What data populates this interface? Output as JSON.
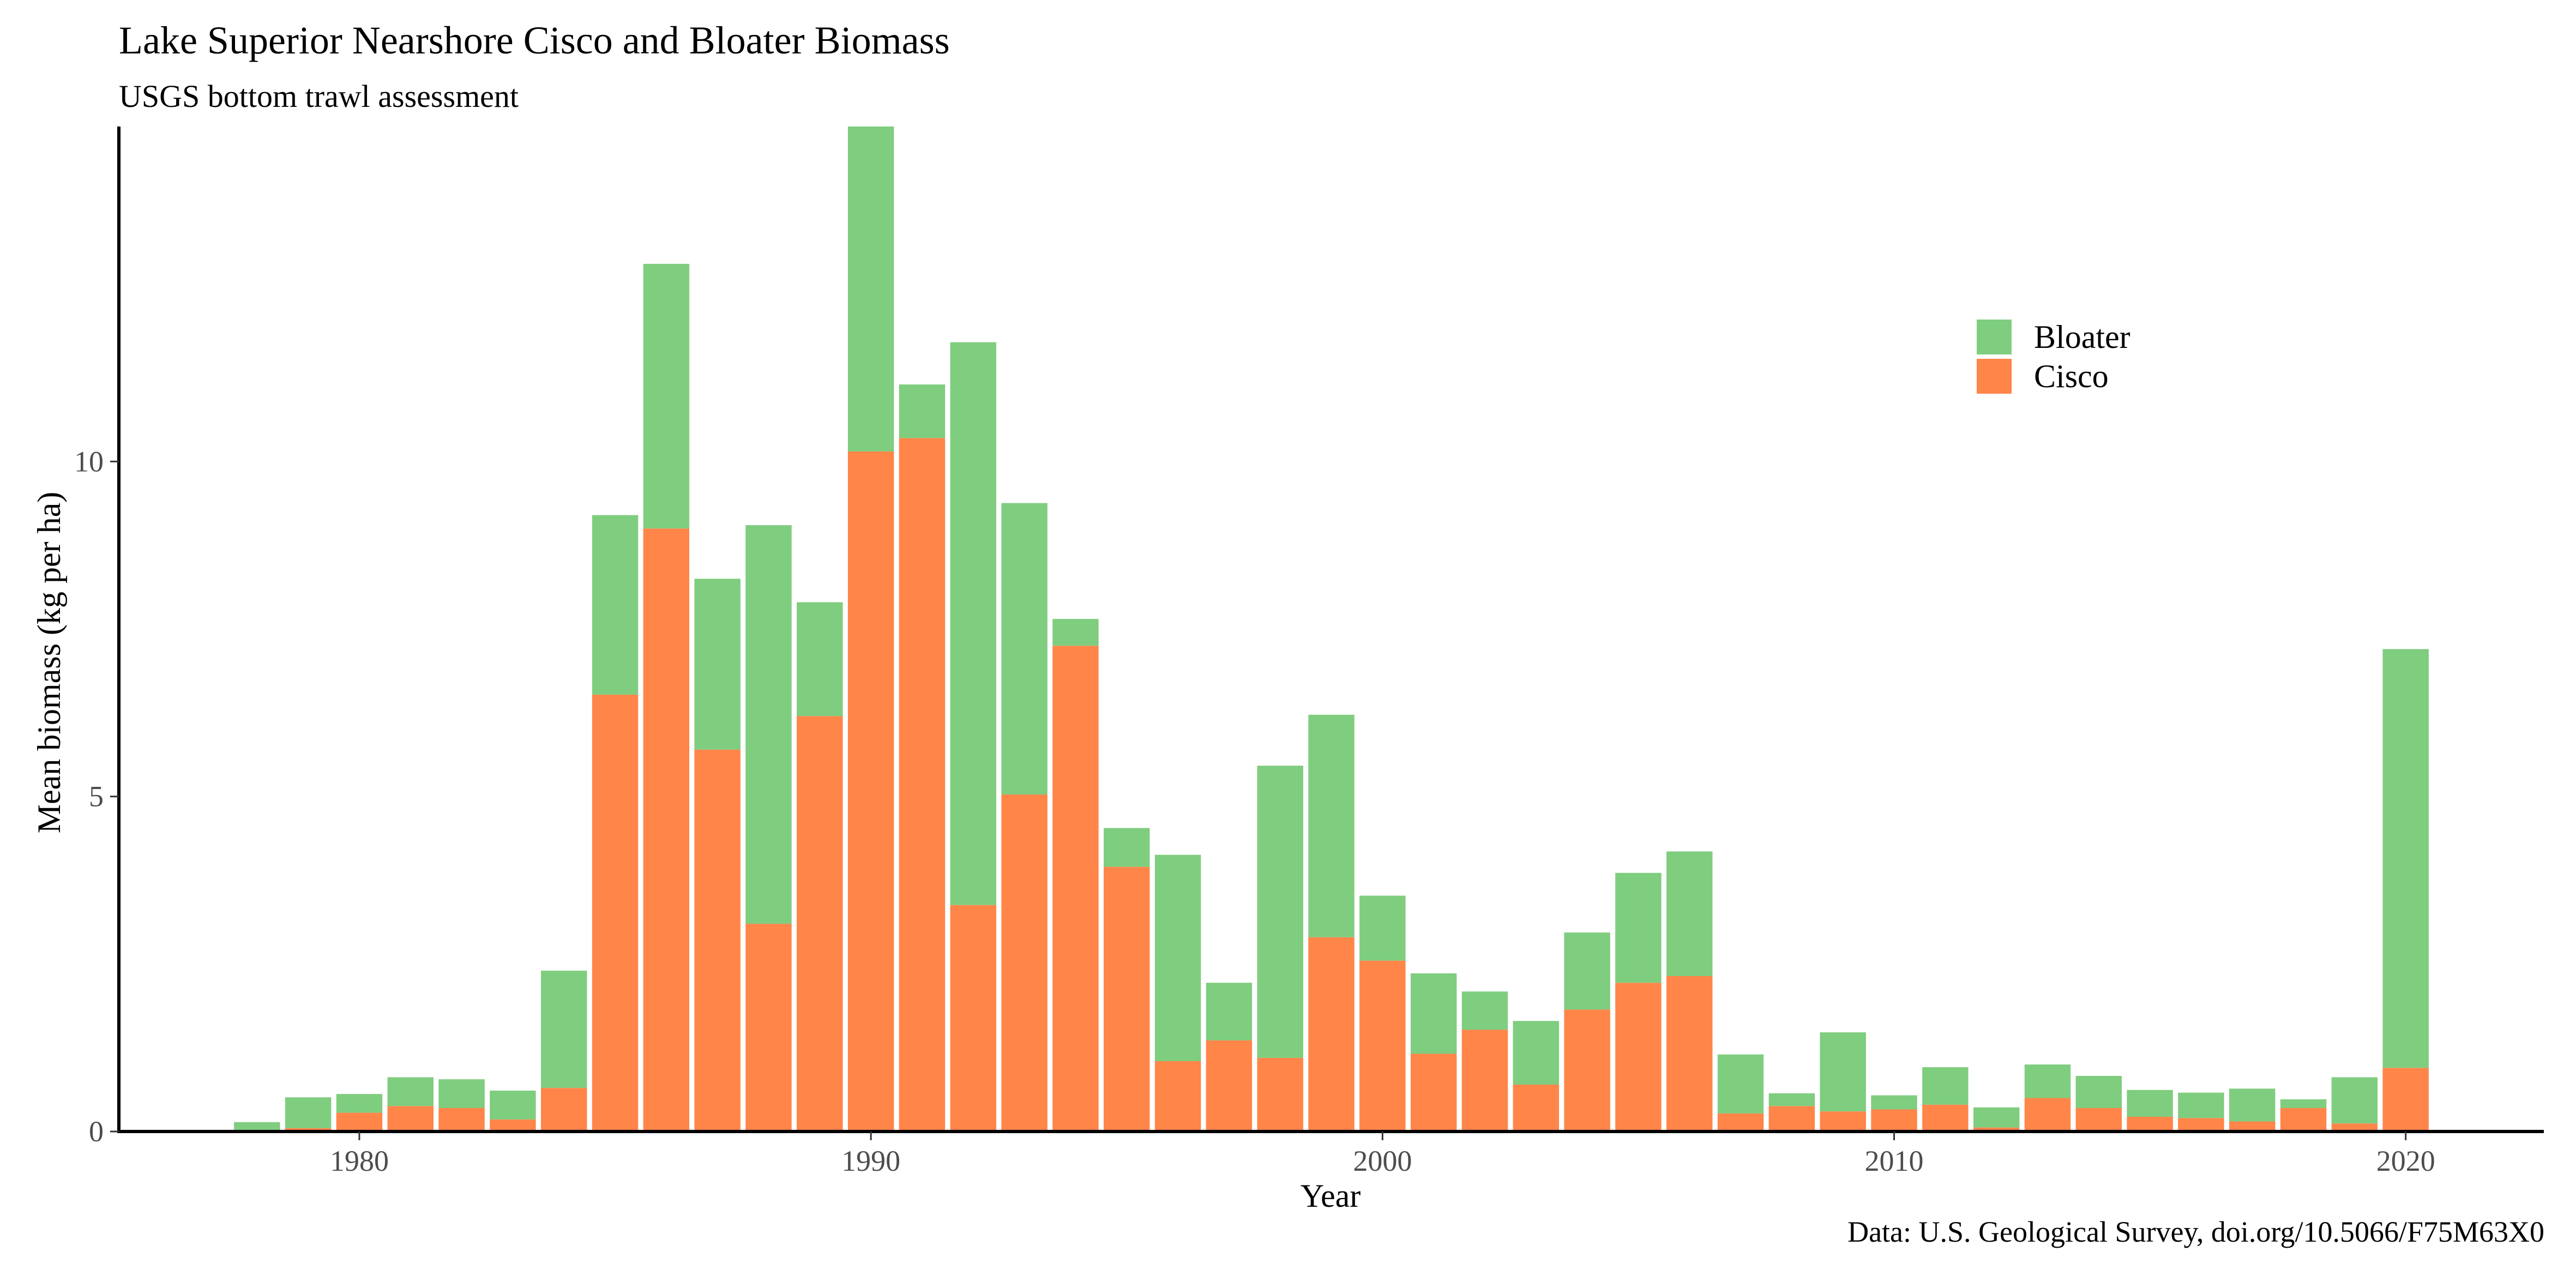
{
  "chart_data": {
    "type": "bar",
    "stacked": true,
    "title": "Lake Superior Nearshore Cisco and Bloater Biomass",
    "subtitle": "USGS bottom trawl assessment",
    "caption": "Data: U.S. Geological Survey, doi.org/10.5066/F75M63X0",
    "xlabel": "Year",
    "ylabel": "Mean biomass (kg per ha)",
    "xlim": [
      1975.3,
      2022.7
    ],
    "ylim": [
      0,
      15
    ],
    "xticks": [
      1980,
      1990,
      2000,
      2010,
      2020
    ],
    "yticks": [
      0,
      5,
      10
    ],
    "grid": false,
    "legend_position": "top-right",
    "legend": [
      {
        "name": "Bloater",
        "color": "#7fcd7f"
      },
      {
        "name": "Cisco",
        "color": "#ff8549"
      }
    ],
    "x": [
      1978,
      1979,
      1980,
      1981,
      1982,
      1983,
      1984,
      1985,
      1986,
      1987,
      1988,
      1989,
      1990,
      1991,
      1992,
      1993,
      1994,
      1995,
      1996,
      1997,
      1998,
      1999,
      2000,
      2001,
      2002,
      2003,
      2004,
      2005,
      2006,
      2007,
      2008,
      2009,
      2010,
      2011,
      2012,
      2013,
      2014,
      2015,
      2016,
      2017,
      2018,
      2019,
      2020
    ],
    "series": [
      {
        "name": "Cisco",
        "color": "#ff8549",
        "values": [
          0.02,
          0.05,
          0.28,
          0.38,
          0.35,
          0.18,
          0.65,
          6.52,
          9.0,
          5.7,
          3.1,
          6.2,
          10.15,
          10.35,
          3.38,
          5.03,
          7.25,
          3.95,
          1.05,
          1.36,
          1.1,
          2.9,
          2.55,
          1.16,
          1.52,
          0.7,
          1.82,
          2.22,
          2.32,
          0.27,
          0.38,
          0.3,
          0.33,
          0.4,
          0.06,
          0.5,
          0.35,
          0.22,
          0.2,
          0.15,
          0.35,
          0.12,
          0.95
        ]
      },
      {
        "name": "Bloater",
        "color": "#7fcd7f",
        "values": [
          0.12,
          0.46,
          0.28,
          0.43,
          0.43,
          0.43,
          1.75,
          2.68,
          3.95,
          2.55,
          5.95,
          1.7,
          4.85,
          0.8,
          8.4,
          4.35,
          0.4,
          0.58,
          3.08,
          0.86,
          4.36,
          3.32,
          0.97,
          1.2,
          0.57,
          0.95,
          1.15,
          1.64,
          1.86,
          0.88,
          0.19,
          1.18,
          0.21,
          0.56,
          0.3,
          0.5,
          0.48,
          0.4,
          0.38,
          0.49,
          0.13,
          0.69,
          6.25
        ]
      }
    ]
  }
}
